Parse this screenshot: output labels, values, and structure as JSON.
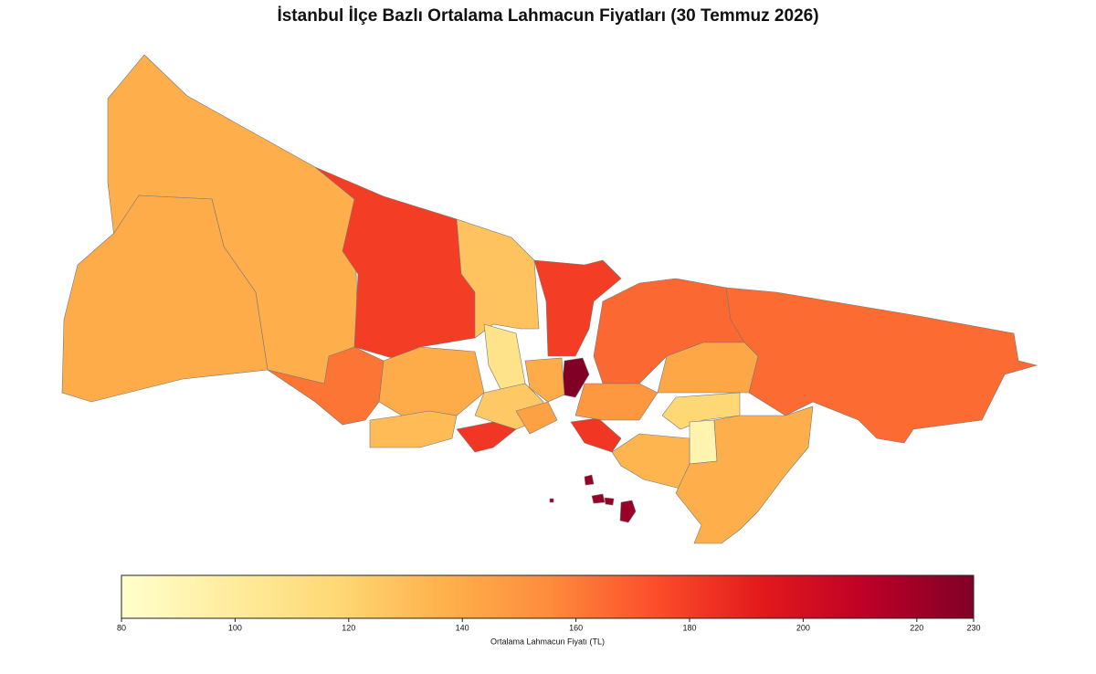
{
  "chart_data": {
    "type": "choropleth",
    "title": "İstanbul İlçe Bazlı Ortalama Lahmacun Fiyatları (30 Temmuz 2026)",
    "values": [
      138,
      140,
      180,
      128,
      180,
      230,
      162,
      108,
      140,
      132,
      182,
      125,
      145,
      140,
      166,
      165,
      142,
      182,
      150,
      118,
      92,
      135,
      138,
      222
    ],
    "colormap": [
      "#ffffcc",
      "#ffeda0",
      "#fed976",
      "#feb24c",
      "#fd8d3c",
      "#fc4e2a",
      "#e31a1c",
      "#bd0026",
      "#800026"
    ],
    "colorbar": {
      "label": "Ortalama Lahmacun Fiyatı (TL)",
      "lim": [
        80,
        230
      ],
      "ticks": [
        80,
        100,
        120,
        140,
        160,
        180,
        200,
        220,
        230
      ]
    }
  }
}
